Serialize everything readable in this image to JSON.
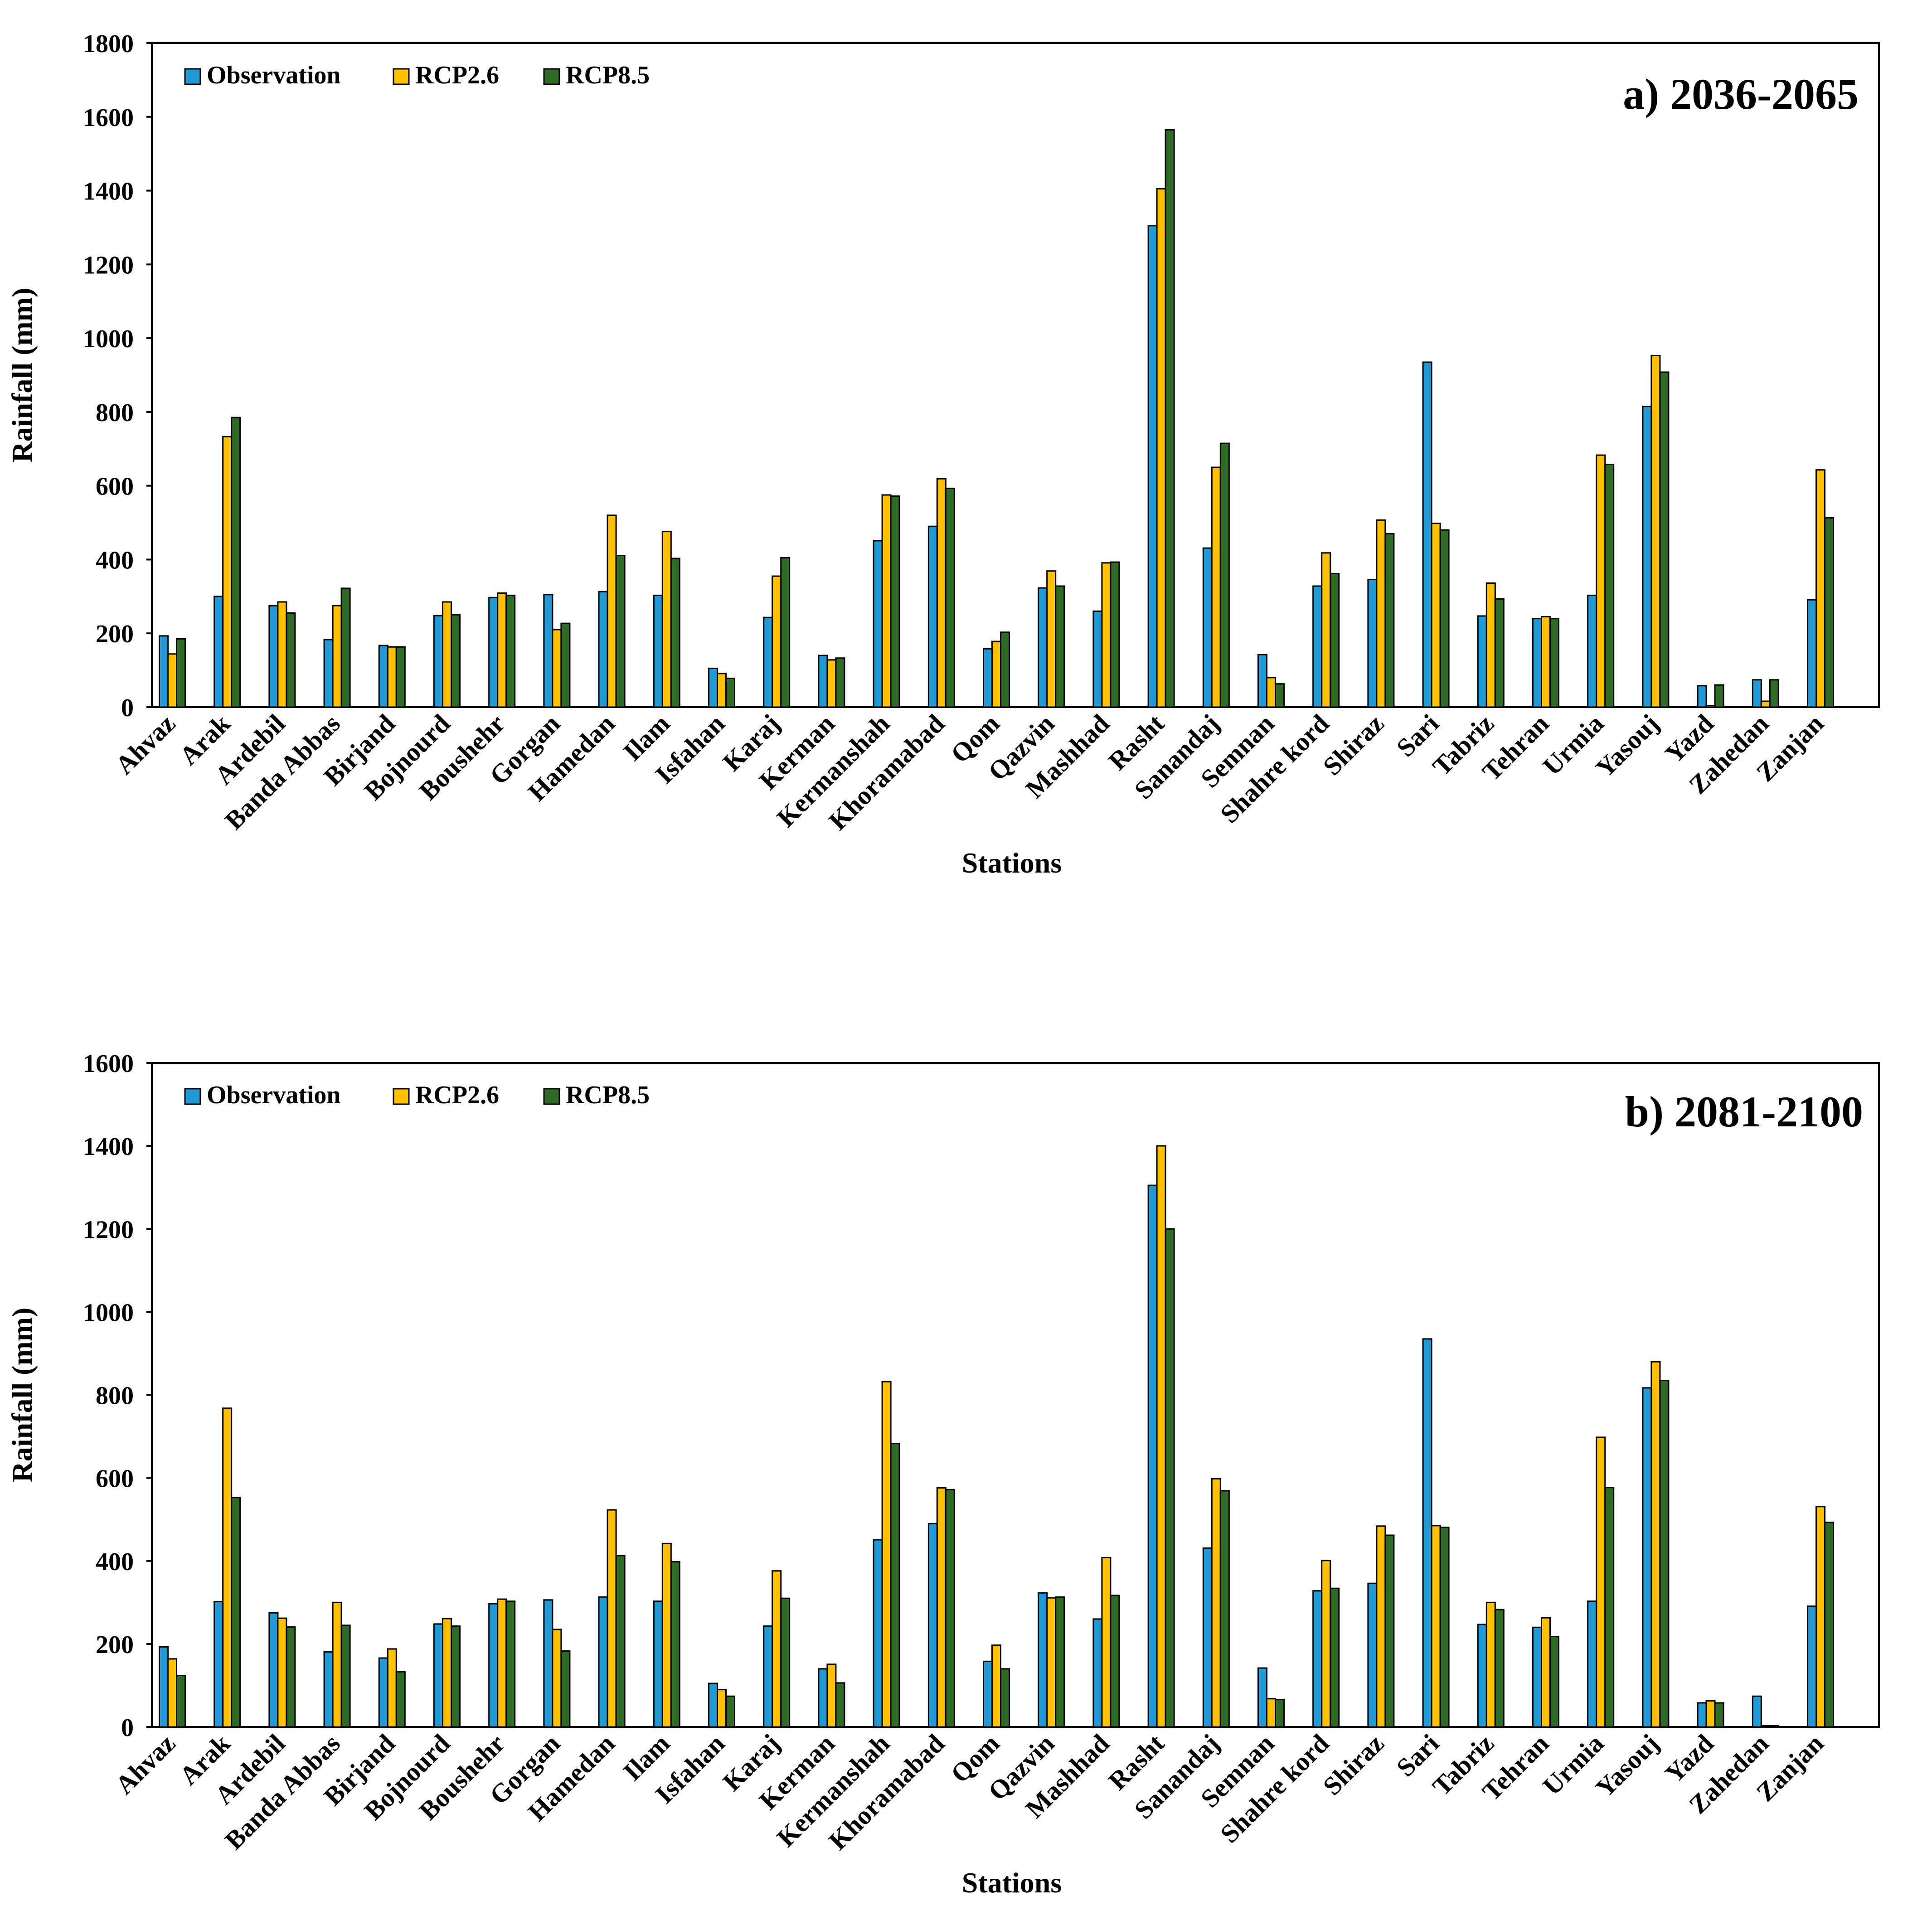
{
  "colors": {
    "observation": "#1f9ad6",
    "rcp26": "#ffc000",
    "rcp85": "#2e6b24",
    "bar_stroke": "#000000"
  },
  "legend": {
    "observation": "Observation",
    "rcp26": "RCP2.6",
    "rcp85": "RCP8.5"
  },
  "chart_data": [
    {
      "type": "bar",
      "title": "a) 2036-2065",
      "xlabel": "Stations",
      "ylabel": "Rainfall (mm)",
      "ylim": [
        0,
        1800
      ],
      "yticks": [
        "0",
        "200",
        "400",
        "600",
        "800",
        "1000",
        "1200",
        "1400",
        "1600",
        "1800"
      ],
      "legend_position": "top-left",
      "categories": [
        "Ahvaz",
        "Arak",
        "Ardebil",
        "Banda Abbas",
        "Birjand",
        "Bojnourd",
        "Boushehr",
        "Gorgan",
        "Hamedan",
        "Ilam",
        "Isfahan",
        "Karaj",
        "Kerman",
        "Kermanshah",
        "Khoramabad",
        "Qom",
        "Qazvin",
        "Mashhad",
        "Rasht",
        "Sanandaj",
        "Semnan",
        "Shahre kord",
        "Shiraz",
        "Sari",
        "Tabriz",
        "Tehran",
        "Urmia",
        "Yasouj",
        "Yazd",
        "Zahedan",
        "Zanjan"
      ],
      "series": [
        {
          "name": "Observation",
          "key": "observation",
          "values": [
            193,
            300,
            275,
            183,
            167,
            248,
            297,
            305,
            313,
            303,
            105,
            243,
            140,
            451,
            490,
            158,
            323,
            260,
            1305,
            431,
            142,
            328,
            346,
            935,
            247,
            240,
            303,
            815,
            58,
            74,
            291
          ]
        },
        {
          "name": "RCP2.6",
          "key": "rcp26",
          "values": [
            144,
            733,
            285,
            275,
            163,
            285,
            309,
            210,
            520,
            476,
            91,
            355,
            128,
            575,
            619,
            178,
            369,
            391,
            1405,
            650,
            80,
            418,
            507,
            498,
            336,
            245,
            683,
            953,
            4,
            16,
            643
          ]
        },
        {
          "name": "RCP8.5",
          "key": "rcp85",
          "values": [
            185,
            785,
            255,
            322,
            163,
            250,
            303,
            227,
            411,
            403,
            78,
            405,
            133,
            572,
            593,
            203,
            328,
            393,
            1565,
            715,
            63,
            362,
            470,
            480,
            293,
            240,
            658,
            908,
            60,
            74,
            513
          ]
        }
      ]
    },
    {
      "type": "bar",
      "title": "b) 2081-2100",
      "xlabel": "Stations",
      "ylabel": "Rainfall (mm)",
      "ylim": [
        0,
        1600
      ],
      "yticks": [
        "0",
        "200",
        "400",
        "600",
        "800",
        "1000",
        "1200",
        "1400",
        "1600"
      ],
      "legend_position": "top-left",
      "categories": [
        "Ahvaz",
        "Arak",
        "Ardebil",
        "Banda Abbas",
        "Birjand",
        "Bojnourd",
        "Boushehr",
        "Gorgan",
        "Hamedan",
        "Ilam",
        "Isfahan",
        "Karaj",
        "Kerman",
        "Kermanshah",
        "Khoramabad",
        "Qom",
        "Qazvin",
        "Mashhad",
        "Rasht",
        "Sanandaj",
        "Semnan",
        "Shahre kord",
        "Shiraz",
        "Sari",
        "Tabriz",
        "Tehran",
        "Urmia",
        "Yasouj",
        "Yazd",
        "Zahedan",
        "Zanjan"
      ],
      "series": [
        {
          "name": "Observation",
          "key": "observation",
          "values": [
            193,
            302,
            275,
            181,
            166,
            248,
            297,
            306,
            313,
            303,
            105,
            243,
            140,
            451,
            490,
            158,
            323,
            260,
            1305,
            431,
            142,
            328,
            346,
            935,
            247,
            240,
            303,
            817,
            58,
            74,
            291
          ]
        },
        {
          "name": "RCP2.6",
          "key": "rcp26",
          "values": [
            164,
            768,
            262,
            300,
            188,
            261,
            308,
            235,
            523,
            442,
            90,
            376,
            151,
            832,
            576,
            197,
            311,
            408,
            1400,
            598,
            68,
            401,
            484,
            485,
            300,
            263,
            698,
            880,
            63,
            3,
            531
          ]
        },
        {
          "name": "RCP8.5",
          "key": "rcp85",
          "values": [
            124,
            553,
            241,
            245,
            133,
            243,
            303,
            183,
            413,
            398,
            74,
            310,
            106,
            683,
            572,
            140,
            313,
            317,
            1200,
            569,
            66,
            334,
            462,
            481,
            283,
            218,
            577,
            835,
            58,
            3,
            493
          ]
        }
      ]
    }
  ]
}
